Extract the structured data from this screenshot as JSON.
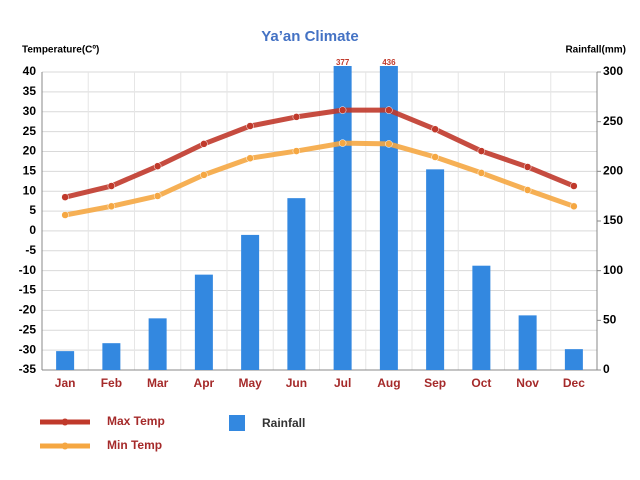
{
  "chart_data": {
    "type": "combo",
    "title": "Ya’an Climate",
    "y_label": "Temperature(Cº)",
    "y2_label": "Rainfall(mm)",
    "categories": [
      "Jan",
      "Feb",
      "Mar",
      "Apr",
      "May",
      "Jun",
      "Jul",
      "Aug",
      "Sep",
      "Oct",
      "Nov",
      "Dec"
    ],
    "series": [
      {
        "name": "Max Temp",
        "kind": "line",
        "color": "#c0392b",
        "values": [
          8.5,
          11.3,
          16.3,
          21.9,
          26.4,
          28.7,
          30.4,
          30.4,
          25.6,
          20.1,
          16.1,
          11.3
        ]
      },
      {
        "name": "Min Temp",
        "kind": "line",
        "color": "#f5a742",
        "values": [
          4,
          6.2,
          8.8,
          14.1,
          18.3,
          20.1,
          22.1,
          21.9,
          18.6,
          14.6,
          10.3,
          6.2
        ]
      },
      {
        "name": "Rainfall",
        "kind": "bar",
        "axis": "y2",
        "color": "#3388e0",
        "values": [
          19,
          27,
          52,
          96,
          136,
          173,
          377,
          436,
          202,
          105,
          55,
          21
        ],
        "value_labels": [
          null,
          null,
          null,
          null,
          null,
          null,
          "377",
          "436",
          null,
          null,
          null,
          null
        ]
      }
    ],
    "ylim": [
      -35,
      40
    ],
    "yticks": [
      -35,
      -30,
      -25,
      -20,
      -15,
      -10,
      -5,
      0,
      5,
      10,
      15,
      20,
      25,
      30,
      35,
      40
    ],
    "y2lim": [
      0,
      300
    ],
    "y2ticks": [
      0,
      50,
      100,
      150,
      200,
      250,
      300
    ],
    "grid": true
  }
}
